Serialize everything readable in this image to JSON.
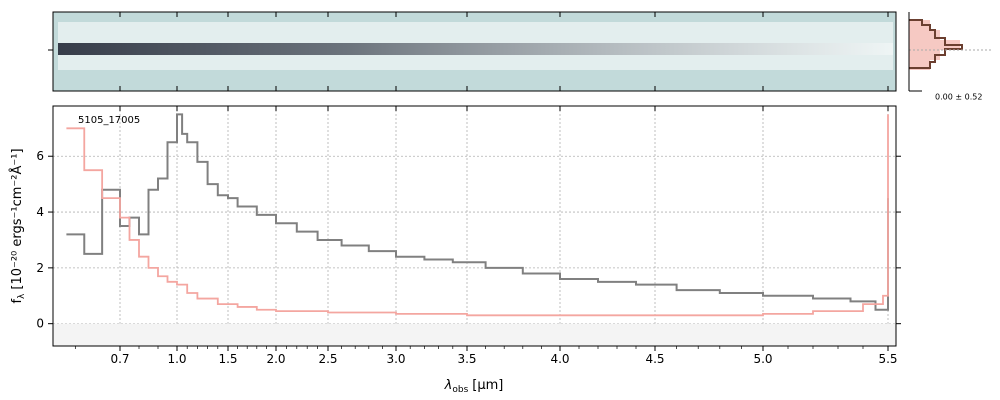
{
  "chart_data": {
    "type": "line",
    "xlabel": "λobs [μm]",
    "xlabel_main": "λ",
    "xlabel_sub": "obs",
    "xlabel_unit": "[μm]",
    "ylabel": "fλ [10⁻²⁰ ergs⁻¹cm⁻²Å⁻¹]",
    "ylabel_main": "f",
    "ylabel_sub": "λ",
    "ylabel_unit": "[10⁻²⁰ ergs⁻¹cm⁻²Å⁻¹]",
    "annotation": "5105_17005",
    "x_scale": "square-root-like (nonlinear)",
    "xlim": [
      0.55,
      5.52
    ],
    "ylim": [
      -0.8,
      7.8
    ],
    "x_ticks": [
      0.7,
      1.0,
      1.5,
      2.0,
      2.5,
      3.0,
      3.5,
      4.0,
      4.5,
      5.0,
      5.5
    ],
    "x_tick_labels": [
      "0.7",
      "1.0",
      "1.5",
      "2.0",
      "2.5",
      "3.0",
      "3.5",
      "4.0",
      "4.5",
      "5.0",
      "5.5"
    ],
    "y_ticks": [
      0,
      2,
      4,
      6
    ],
    "y_tick_labels": [
      "0",
      "2",
      "4",
      "6"
    ],
    "grid": true,
    "series": [
      {
        "color": "#808080",
        "x": [
          0.58,
          0.62,
          0.66,
          0.7,
          0.75,
          0.8,
          0.85,
          0.9,
          0.95,
          1.0,
          1.05,
          1.1,
          1.2,
          1.3,
          1.4,
          1.5,
          1.6,
          1.8,
          2.0,
          2.2,
          2.4,
          2.6,
          2.8,
          3.0,
          3.2,
          3.4,
          3.6,
          3.8,
          4.0,
          4.2,
          4.4,
          4.6,
          4.8,
          5.0,
          5.2,
          5.35,
          5.45,
          5.5
        ],
        "y": [
          3.2,
          2.5,
          4.8,
          3.5,
          3.8,
          3.2,
          4.8,
          5.2,
          6.5,
          7.5,
          6.8,
          6.5,
          5.8,
          5.0,
          4.6,
          4.5,
          4.2,
          3.9,
          3.6,
          3.3,
          3.0,
          2.8,
          2.6,
          2.4,
          2.3,
          2.2,
          2.0,
          1.8,
          1.6,
          1.5,
          1.4,
          1.2,
          1.1,
          1.0,
          0.9,
          0.8,
          0.5,
          4.5
        ]
      },
      {
        "color": "#f4a6a0",
        "x": [
          0.58,
          0.62,
          0.66,
          0.7,
          0.75,
          0.8,
          0.85,
          0.9,
          0.95,
          1.0,
          1.1,
          1.2,
          1.4,
          1.6,
          1.8,
          2.0,
          2.5,
          3.0,
          3.5,
          4.0,
          4.5,
          5.0,
          5.2,
          5.4,
          5.48,
          5.5
        ],
        "y": [
          7.0,
          5.5,
          4.5,
          3.8,
          3.0,
          2.4,
          2.0,
          1.7,
          1.5,
          1.4,
          1.1,
          0.9,
          0.7,
          0.6,
          0.5,
          0.45,
          0.4,
          0.35,
          0.3,
          0.3,
          0.3,
          0.35,
          0.45,
          0.7,
          1.0,
          7.5
        ]
      }
    ],
    "spectrum_2d": {
      "colormap": [
        "#c2dada",
        "#ffffff",
        "#0b1020"
      ]
    },
    "profile_panel": {
      "label": "0.00 ± 0.52",
      "line_color": "#6b3f30",
      "fill_color": "#f6c9c3"
    }
  }
}
